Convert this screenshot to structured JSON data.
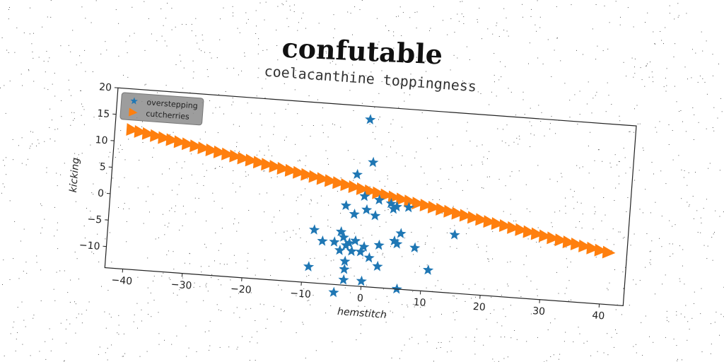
{
  "suptitle": "confutable",
  "chart_data": {
    "type": "scatter",
    "title": "coelacanthine toppingness",
    "xlabel": "hemstitch",
    "ylabel": "kicking",
    "xlim": [
      -43,
      44
    ],
    "ylim": [
      -14,
      20
    ],
    "xticks": [
      -40,
      -30,
      -20,
      -10,
      0,
      10,
      20,
      30,
      40
    ],
    "yticks": [
      -10,
      -5,
      0,
      5,
      10,
      15,
      20
    ],
    "grid": false,
    "legend_position": "top-left",
    "series": [
      {
        "name": "overstepping",
        "marker": "star",
        "color": "#1f77b4",
        "points": [
          [
            -0.5,
            17.5
          ],
          [
            0.5,
            9.5
          ],
          [
            -2,
            7
          ],
          [
            -0.5,
            3
          ],
          [
            2,
            2.5
          ],
          [
            4,
            2
          ],
          [
            5,
            1.5
          ],
          [
            7,
            1.5
          ],
          [
            -3.5,
            1
          ],
          [
            0,
            0.5
          ],
          [
            -2,
            -0.5
          ],
          [
            1.5,
            -0.5
          ],
          [
            4.5,
            1
          ],
          [
            -8.5,
            -4
          ],
          [
            -4,
            -4
          ],
          [
            6,
            -3.5
          ],
          [
            15,
            -3
          ],
          [
            5,
            -5
          ],
          [
            5.5,
            -5.5
          ],
          [
            -3.5,
            -5
          ],
          [
            -2.5,
            -6
          ],
          [
            -1.5,
            -5.5
          ],
          [
            -7,
            -6
          ],
          [
            -5,
            -6
          ],
          [
            -3,
            -6.5
          ],
          [
            0,
            -6.5
          ],
          [
            2.5,
            -6
          ],
          [
            8.5,
            -6
          ],
          [
            -4,
            -7.5
          ],
          [
            -0.5,
            -7.5
          ],
          [
            -2,
            -7.5
          ],
          [
            1,
            -8.5
          ],
          [
            -3,
            -9.5
          ],
          [
            2.5,
            -10
          ],
          [
            11,
            -10
          ],
          [
            -9,
            -11
          ],
          [
            -3,
            -11
          ],
          [
            -3,
            -13
          ],
          [
            0,
            -13
          ],
          [
            6,
            -14
          ],
          [
            -4.5,
            -15.5
          ]
        ]
      },
      {
        "name": "cutcherries",
        "marker": "triangle-right",
        "color": "#ff7f0e",
        "x_start": -40,
        "y_start": 12.3,
        "x_end": 41,
        "y_end": -4.2,
        "count": 61
      }
    ]
  }
}
